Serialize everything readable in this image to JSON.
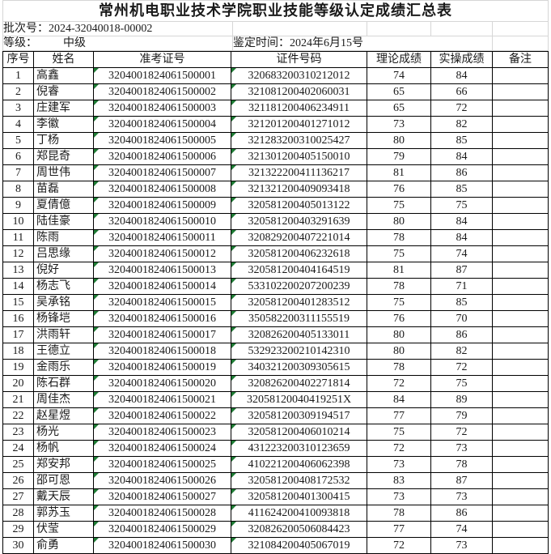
{
  "title": "常州机电职业技术学院职业技能等级认定成绩汇总表",
  "meta": {
    "batch_label": "批次号：",
    "batch_number": "2024-32040018-00002",
    "level_label": "等级：",
    "level_value": "中级",
    "assess_time_label": "鉴定时间：",
    "assess_time_value": "2024年6月15号"
  },
  "table": {
    "columns": [
      "序号",
      "姓名",
      "准考证号",
      "证件号码",
      "理论成绩",
      "实操成绩",
      "备注"
    ],
    "rows": [
      [
        "1",
        "高鑫",
        "3204001824061500001",
        "320683200310212012",
        "74",
        "84",
        ""
      ],
      [
        "2",
        "倪睿",
        "3204001824061500002",
        "321081200402060031",
        "65",
        "66",
        ""
      ],
      [
        "3",
        "庄建军",
        "3204001824061500003",
        "321181200406234911",
        "65",
        "72",
        ""
      ],
      [
        "4",
        "李徽",
        "3204001824061500004",
        "321201200401271012",
        "73",
        "82",
        ""
      ],
      [
        "5",
        "丁杨",
        "3204001824061500005",
        "321283200310025427",
        "80",
        "85",
        ""
      ],
      [
        "6",
        "郑昆奇",
        "3204001824061500006",
        "321301200405150010",
        "79",
        "84",
        ""
      ],
      [
        "7",
        "周世伟",
        "3204001824061500007",
        "321322200411136217",
        "81",
        "86",
        ""
      ],
      [
        "8",
        "苗磊",
        "3204001824061500008",
        "321321200409093418",
        "76",
        "85",
        ""
      ],
      [
        "9",
        "夏倩億",
        "3204001824061500009",
        "320581200405013122",
        "75",
        "75",
        ""
      ],
      [
        "10",
        "陆佳豪",
        "3204001824061500010",
        "320581200403291639",
        "80",
        "84",
        ""
      ],
      [
        "11",
        "陈雨",
        "3204001824061500011",
        "320829200407221014",
        "78",
        "84",
        ""
      ],
      [
        "12",
        "吕思缘",
        "3204001824061500012",
        "320581200406232618",
        "75",
        "74",
        ""
      ],
      [
        "13",
        "倪好",
        "3204001824061500013",
        "320581200404164519",
        "81",
        "87",
        ""
      ],
      [
        "14",
        "杨志飞",
        "3204001824061500014",
        "533102200207200239",
        "78",
        "71",
        ""
      ],
      [
        "15",
        "吴承铭",
        "3204001824061500015",
        "320581200401283512",
        "75",
        "85",
        ""
      ],
      [
        "16",
        "杨锋垲",
        "3204001824061500016",
        "350582200311155519",
        "76",
        "70",
        ""
      ],
      [
        "17",
        "洪雨轩",
        "3204001824061500017",
        "320826200405133011",
        "80",
        "86",
        ""
      ],
      [
        "18",
        "王德立",
        "3204001824061500018",
        "532923200210142310",
        "80",
        "82",
        ""
      ],
      [
        "19",
        "金雨乐",
        "3204001824061500019",
        "340321200309305615",
        "78",
        "72",
        ""
      ],
      [
        "20",
        "陈石群",
        "3204001824061500020",
        "320826200402271814",
        "72",
        "75",
        ""
      ],
      [
        "21",
        "周佳杰",
        "3204001824061500021",
        "32058120040419251X",
        "84",
        "89",
        ""
      ],
      [
        "22",
        "赵星煜",
        "3204001824061500022",
        "320581200309194517",
        "77",
        "79",
        ""
      ],
      [
        "23",
        "杨光",
        "3204001824061500023",
        "320581200406010214",
        "75",
        "72",
        ""
      ],
      [
        "24",
        "杨帆",
        "3204001824061500024",
        "431223200310123659",
        "72",
        "73",
        ""
      ],
      [
        "25",
        "郑安邦",
        "3204001824061500025",
        "410221200406062398",
        "73",
        "78",
        ""
      ],
      [
        "26",
        "邵可恩",
        "3204001824061500026",
        "320581200408172532",
        "83",
        "87",
        ""
      ],
      [
        "27",
        "戴天辰",
        "3204001824061500027",
        "320581200401300415",
        "73",
        "73",
        ""
      ],
      [
        "28",
        "郭苏玉",
        "3204001824061500028",
        "411624200410093818",
        "78",
        "86",
        ""
      ],
      [
        "29",
        "伏莹",
        "3204001824061500029",
        "320826200506084423",
        "77",
        "74",
        ""
      ],
      [
        "30",
        "俞勇",
        "3204001824061500030",
        "321084200405067019",
        "72",
        "73",
        ""
      ]
    ]
  },
  "colors": {
    "indicator_green": "#1f7c35",
    "gridline_grey": "#d6d6d6",
    "table_border": "#000000"
  }
}
